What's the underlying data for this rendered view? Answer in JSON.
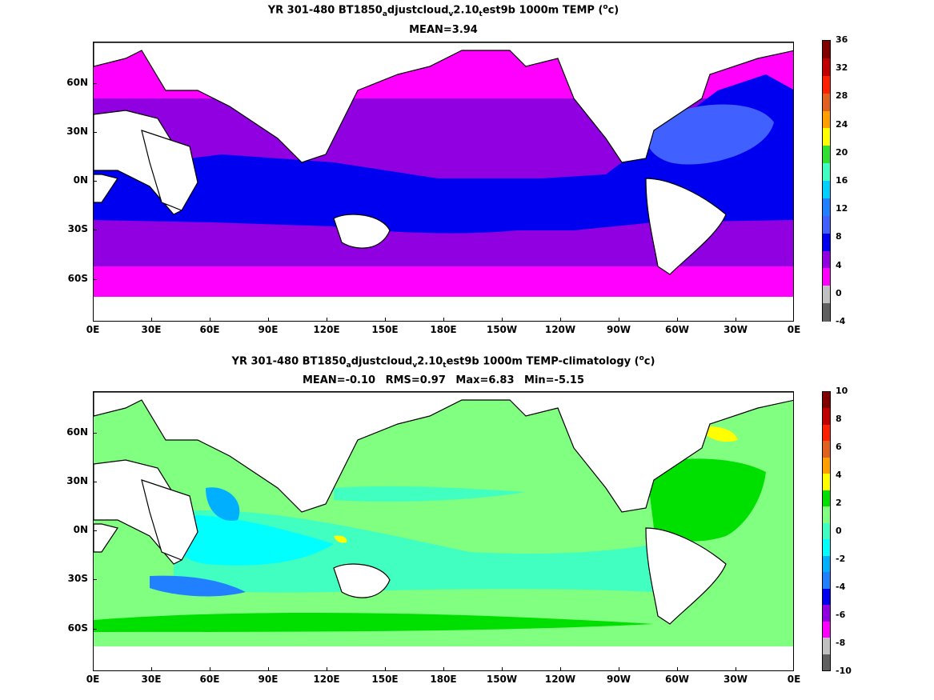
{
  "top": {
    "title_pre": "YR 301-480 BT1850",
    "title_s1": "a",
    "title_m1": "djustcloud",
    "title_s2": "v",
    "title_m2": "2.10",
    "title_s3": "t",
    "title_m3": "est9b 1000m TEMP (",
    "title_sup": "o",
    "title_post": "c)",
    "stats": {
      "mean": "MEAN=3.94"
    },
    "colorbar": {
      "labels": [
        "36",
        "32",
        "28",
        "24",
        "20",
        "16",
        "12",
        "8",
        "4",
        "0",
        "-4"
      ],
      "colors": [
        "#800000",
        "#c00000",
        "#ff2000",
        "#e06020",
        "#ffa000",
        "#ffff00",
        "#30e030",
        "#40ffc0",
        "#00d0ff",
        "#2080ff",
        "#4060ff",
        "#0000f0",
        "#9000e0",
        "#ff00ff",
        "#c0c0c0",
        "#606060"
      ]
    }
  },
  "bottom": {
    "title_pre": "YR 301-480 BT1850",
    "title_s1": "a",
    "title_m1": "djustcloud",
    "title_s2": "v",
    "title_m2": "2.10",
    "title_s3": "t",
    "title_m3": "est9b 1000m TEMP-climatology (",
    "title_sup": "o",
    "title_post": "c)",
    "stats": {
      "mean": "MEAN=-0.10",
      "rms": "RMS=0.97",
      "max": "Max=6.83",
      "min": "Min=-5.15"
    },
    "colorbar": {
      "labels": [
        "10",
        "8",
        "6",
        "4",
        "2",
        "0",
        "-2",
        "-4",
        "-6",
        "-8",
        "-10"
      ],
      "colors": [
        "#800000",
        "#c00000",
        "#ff2000",
        "#e06020",
        "#ffa000",
        "#ffff00",
        "#00e000",
        "#80ff80",
        "#40ffc0",
        "#00ffff",
        "#00b0ff",
        "#2080ff",
        "#0000f0",
        "#9000e0",
        "#ff00ff",
        "#c0c0c0",
        "#606060"
      ]
    }
  },
  "axes": {
    "lat_labels": [
      "60N",
      "30N",
      "0N",
      "30S",
      "60S"
    ],
    "lon_labels": [
      "0E",
      "30E",
      "60E",
      "90E",
      "120E",
      "150E",
      "180E",
      "150W",
      "120W",
      "90W",
      "60W",
      "30W",
      "0E"
    ]
  },
  "map_colors": {
    "land": "#ffffff",
    "coast": "#000000",
    "top_magenta": "#ff00ff",
    "top_purple": "#9000e0",
    "top_blue": "#0000f0",
    "top_lightblue": "#4060ff",
    "top_cyan": "#40ffc0",
    "bot_lightgreen": "#80ff80",
    "bot_aqua": "#40ffc0",
    "bot_cyan": "#00ffff",
    "bot_sky": "#00b0ff",
    "bot_blue": "#2080ff",
    "bot_green": "#00e000",
    "bot_yellow": "#ffff00",
    "bot_orange": "#ffa000"
  }
}
